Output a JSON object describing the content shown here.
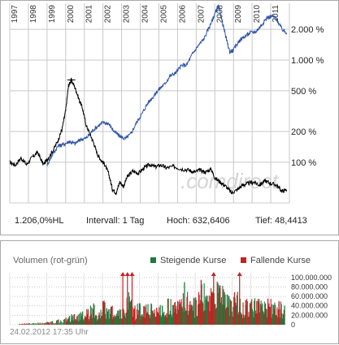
{
  "chart_data": [
    {
      "type": "line",
      "scale": "log",
      "x_ticks": [
        "1997",
        "1998",
        "1999",
        "2000",
        "2001",
        "2002",
        "2003",
        "2004",
        "2005",
        "2006",
        "2007",
        "2008",
        "2009",
        "2010",
        "2011"
      ],
      "y_ticks": [
        "2.000 %",
        "1.000 %",
        "500 %",
        "200 %",
        "100 %"
      ],
      "y_tick_values": [
        2000,
        1000,
        500,
        200,
        100
      ],
      "xlim": [
        1997.0,
        2012.0
      ],
      "ylim_pct": [
        40,
        3600
      ],
      "watermark": ".comdirect",
      "series": [
        {
          "color": "#000000",
          "points": [
            [
              1997.0,
              100
            ],
            [
              1997.3,
              94
            ],
            [
              1997.6,
              110
            ],
            [
              1997.9,
              95
            ],
            [
              1998.2,
              112
            ],
            [
              1998.5,
              125
            ],
            [
              1998.8,
              95
            ],
            [
              1999.0,
              106
            ],
            [
              1999.3,
              128
            ],
            [
              1999.6,
              165
            ],
            [
              1999.8,
              210
            ],
            [
              2000.0,
              320
            ],
            [
              2000.15,
              560
            ],
            [
              2000.3,
              640
            ],
            [
              2000.5,
              540
            ],
            [
              2000.7,
              420
            ],
            [
              2000.9,
              340
            ],
            [
              2001.1,
              230
            ],
            [
              2001.3,
              190
            ],
            [
              2001.5,
              155
            ],
            [
              2001.7,
              120
            ],
            [
              2001.9,
              105
            ],
            [
              2002.1,
              95
            ],
            [
              2002.3,
              78
            ],
            [
              2002.5,
              55
            ],
            [
              2002.7,
              50
            ],
            [
              2002.9,
              64
            ],
            [
              2003.1,
              58
            ],
            [
              2003.3,
              72
            ],
            [
              2003.6,
              82
            ],
            [
              2003.9,
              78
            ],
            [
              2004.2,
              88
            ],
            [
              2004.5,
              95
            ],
            [
              2004.8,
              90
            ],
            [
              2005.1,
              94
            ],
            [
              2005.4,
              88
            ],
            [
              2005.8,
              91
            ],
            [
              2006.2,
              86
            ],
            [
              2006.6,
              84
            ],
            [
              2006.9,
              80
            ],
            [
              2007.2,
              84
            ],
            [
              2007.5,
              80
            ],
            [
              2007.8,
              86
            ],
            [
              2008.0,
              70
            ],
            [
              2008.3,
              64
            ],
            [
              2008.6,
              58
            ],
            [
              2008.9,
              50
            ],
            [
              2009.2,
              54
            ],
            [
              2009.5,
              60
            ],
            [
              2009.8,
              62
            ],
            [
              2010.1,
              64
            ],
            [
              2010.4,
              60
            ],
            [
              2010.7,
              66
            ],
            [
              2011.0,
              62
            ],
            [
              2011.3,
              60
            ],
            [
              2011.6,
              52
            ],
            [
              2011.85,
              54
            ]
          ]
        },
        {
          "color": "#2f55a8",
          "points": [
            [
              1999.0,
              94
            ],
            [
              1999.3,
              120
            ],
            [
              1999.6,
              145
            ],
            [
              1999.9,
              150
            ],
            [
              2000.2,
              160
            ],
            [
              2000.5,
              152
            ],
            [
              2000.8,
              168
            ],
            [
              2001.1,
              172
            ],
            [
              2001.4,
              200
            ],
            [
              2001.7,
              225
            ],
            [
              2002.0,
              245
            ],
            [
              2002.3,
              240
            ],
            [
              2002.6,
              200
            ],
            [
              2002.9,
              180
            ],
            [
              2003.2,
              170
            ],
            [
              2003.5,
              190
            ],
            [
              2003.8,
              245
            ],
            [
              2004.1,
              300
            ],
            [
              2004.4,
              380
            ],
            [
              2004.7,
              440
            ],
            [
              2005.0,
              520
            ],
            [
              2005.3,
              580
            ],
            [
              2005.6,
              700
            ],
            [
              2005.9,
              750
            ],
            [
              2006.2,
              880
            ],
            [
              2006.5,
              900
            ],
            [
              2006.8,
              1150
            ],
            [
              2007.1,
              1380
            ],
            [
              2007.4,
              1600
            ],
            [
              2007.7,
              2100
            ],
            [
              2007.9,
              2550
            ],
            [
              2008.05,
              3000
            ],
            [
              2008.2,
              3350
            ],
            [
              2008.35,
              2600
            ],
            [
              2008.6,
              1650
            ],
            [
              2008.8,
              1200
            ],
            [
              2009.0,
              1250
            ],
            [
              2009.3,
              1550
            ],
            [
              2009.6,
              1700
            ],
            [
              2009.9,
              1850
            ],
            [
              2010.2,
              1900
            ],
            [
              2010.5,
              2200
            ],
            [
              2010.8,
              2600
            ],
            [
              2011.1,
              2700
            ],
            [
              2011.3,
              2550
            ],
            [
              2011.6,
              2000
            ],
            [
              2011.85,
              1850
            ]
          ]
        }
      ],
      "marker_high": {
        "x": 2000.3,
        "y": 640
      },
      "stats": {
        "hl": "1.206,0%HL",
        "interval": "Intervall: 1 Tag",
        "high": "Hoch: 632,6406",
        "low": "Tief: 48,4413"
      }
    },
    {
      "type": "bar",
      "title": "Volumen (rot-grün)",
      "legend": [
        {
          "name": "Steigende Kurse",
          "color": "#1f7a3d"
        },
        {
          "name": "Fallende Kurse",
          "color": "#c62222"
        }
      ],
      "y_ticks": [
        "100.000.000",
        "80.000.000",
        "60.000.000",
        "40.000.000",
        "20.000.000",
        "0"
      ],
      "y_tick_values": [
        100000000,
        80000000,
        60000000,
        40000000,
        20000000,
        0
      ],
      "ylim": [
        0,
        110000000
      ],
      "xlim": [
        1997.0,
        2012.0
      ],
      "bars": [
        [
          1997.5,
          2000000,
          "g"
        ],
        [
          1998.0,
          3000000,
          "r"
        ],
        [
          1998.5,
          4000000,
          "g"
        ],
        [
          1999.0,
          6000000,
          "r"
        ],
        [
          1999.5,
          9000000,
          "g"
        ],
        [
          2000.0,
          15000000,
          "r"
        ],
        [
          2000.3,
          22000000,
          "g"
        ],
        [
          2000.6,
          18000000,
          "r"
        ],
        [
          2000.9,
          28000000,
          "g"
        ],
        [
          2001.2,
          30000000,
          "r"
        ],
        [
          2001.5,
          45000000,
          "g"
        ],
        [
          2001.8,
          26000000,
          "r"
        ],
        [
          2002.0,
          50000000,
          "r"
        ],
        [
          2002.2,
          35000000,
          "g"
        ],
        [
          2002.5,
          40000000,
          "r"
        ],
        [
          2002.8,
          30000000,
          "g"
        ],
        [
          2003.1,
          32000000,
          "r"
        ],
        [
          2003.4,
          60000000,
          "g"
        ],
        [
          2003.7,
          35000000,
          "r"
        ],
        [
          2004.0,
          42000000,
          "g"
        ],
        [
          2004.3,
          38000000,
          "r"
        ],
        [
          2004.6,
          45000000,
          "g"
        ],
        [
          2004.9,
          36000000,
          "r"
        ],
        [
          2005.2,
          40000000,
          "g"
        ],
        [
          2005.5,
          55000000,
          "r"
        ],
        [
          2005.8,
          42000000,
          "g"
        ],
        [
          2006.1,
          48000000,
          "r"
        ],
        [
          2006.4,
          90000000,
          "g"
        ],
        [
          2006.7,
          50000000,
          "r"
        ],
        [
          2007.0,
          58000000,
          "g"
        ],
        [
          2007.3,
          95000000,
          "r"
        ],
        [
          2007.6,
          62000000,
          "g"
        ],
        [
          2007.9,
          70000000,
          "r"
        ],
        [
          2008.2,
          88000000,
          "g"
        ],
        [
          2008.5,
          75000000,
          "r"
        ],
        [
          2008.8,
          60000000,
          "g"
        ],
        [
          2009.1,
          68000000,
          "r"
        ],
        [
          2009.4,
          55000000,
          "g"
        ],
        [
          2009.7,
          52000000,
          "r"
        ],
        [
          2010.0,
          48000000,
          "g"
        ],
        [
          2010.3,
          50000000,
          "r"
        ],
        [
          2010.6,
          45000000,
          "g"
        ],
        [
          2010.9,
          55000000,
          "r"
        ],
        [
          2011.2,
          42000000,
          "g"
        ],
        [
          2011.5,
          48000000,
          "r"
        ],
        [
          2011.8,
          40000000,
          "g"
        ]
      ],
      "overflow_arrows": [
        2003.1,
        2003.35,
        2003.6,
        2008.0,
        2009.4
      ],
      "timestamp": "24.02.2012 17:35 Uhr"
    }
  ],
  "colors": {
    "grid": "#c8c8c8",
    "axis_text": "#333333",
    "red": "#c62222",
    "green": "#1f7a3d"
  }
}
